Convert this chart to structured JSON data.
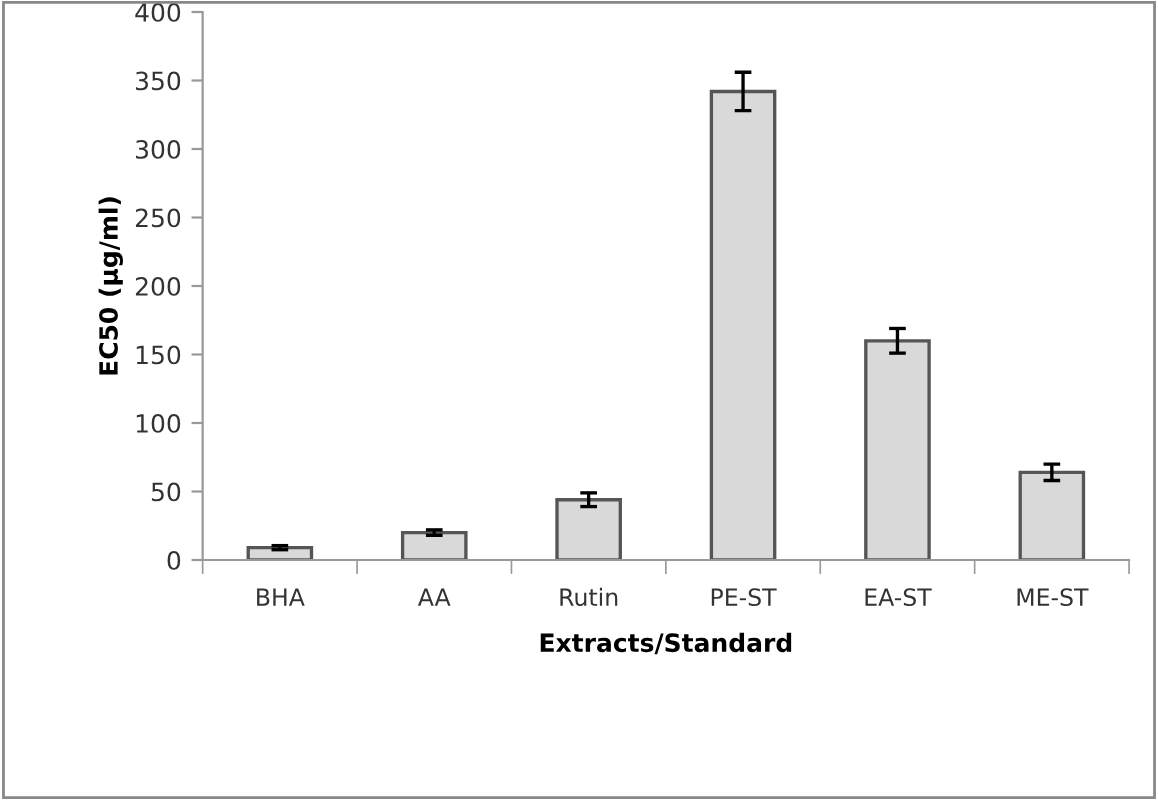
{
  "chart_data": {
    "type": "bar",
    "xlabel": "Extracts/Standard",
    "ylabel": "EC50 (µg/ml)",
    "categories": [
      "BHA",
      "AA",
      "Rutin",
      "PE-ST",
      "EA-ST",
      "ME-ST"
    ],
    "values": [
      9,
      20,
      44,
      342,
      160,
      64
    ],
    "errors": [
      1.5,
      2,
      5,
      14,
      9,
      6
    ],
    "color": "#d9d9d9",
    "ylim": [
      0,
      400
    ],
    "yticks": [
      0,
      50,
      100,
      150,
      200,
      250,
      300,
      350,
      400
    ],
    "grid": false,
    "legend": false
  }
}
